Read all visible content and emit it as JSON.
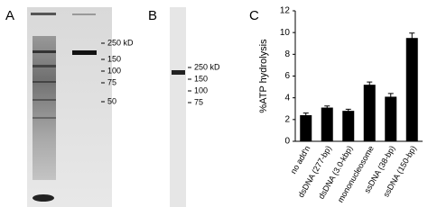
{
  "panels": {
    "a": {
      "label": "A",
      "markers": [
        "250 kD",
        "150",
        "100",
        "75",
        "50"
      ]
    },
    "b": {
      "label": "B",
      "markers": [
        "250 kD",
        "150",
        "100",
        "75"
      ]
    },
    "c": {
      "label": "C"
    }
  },
  "chart_data": {
    "type": "bar",
    "y_label": "%ATP hydrolysis",
    "categories": [
      "no add'n",
      "dsDNA (277-bp)",
      "dsDNA (3.0-kbp)",
      "mononucleosome",
      "ssDNA (38-bp)",
      "ssDNA (150-bp)"
    ],
    "values": [
      2.4,
      3.1,
      2.8,
      5.2,
      4.1,
      9.5
    ],
    "errors": [
      0.2,
      0.15,
      0.15,
      0.25,
      0.3,
      0.45
    ],
    "color": "#000000",
    "ylim": [
      0,
      12
    ],
    "yticks": [
      0,
      2,
      4,
      6,
      8,
      10,
      12
    ],
    "grid": false
  }
}
